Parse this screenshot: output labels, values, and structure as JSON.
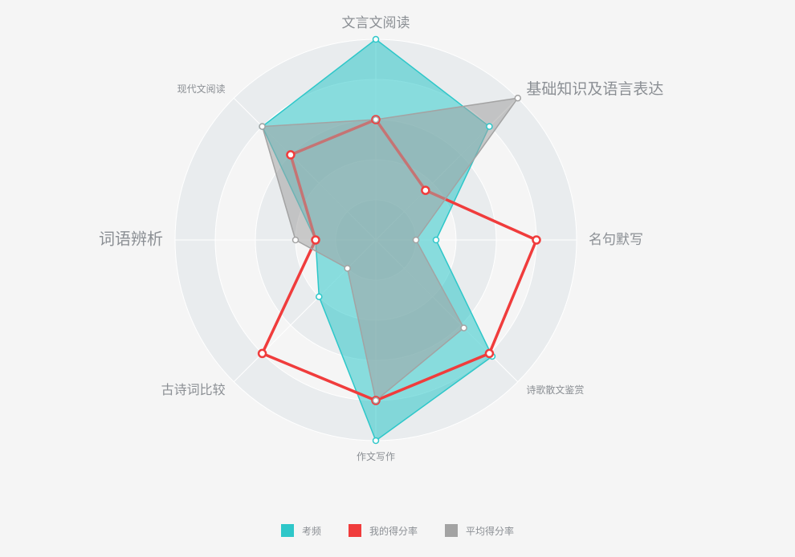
{
  "chart_data": {
    "type": "radar",
    "max": 100,
    "indicators": [
      {
        "name": "文言文阅读"
      },
      {
        "name": "基础知识及语言表达"
      },
      {
        "name": "名句默写"
      },
      {
        "name": "诗歌散文鉴赏"
      },
      {
        "name": "作文写作"
      },
      {
        "name": "古诗词比较"
      },
      {
        "name": "词语辨析"
      },
      {
        "name": "现代文阅读"
      }
    ],
    "series": [
      {
        "name": "考频",
        "color": "#2ec7c9",
        "fill": true,
        "values": [
          100,
          80,
          30,
          82,
          100,
          40,
          30,
          80
        ]
      },
      {
        "name": "我的得分率",
        "color": "#f03c3c",
        "fill": false,
        "values": [
          60,
          35,
          80,
          80,
          80,
          80,
          30,
          60
        ]
      },
      {
        "name": "平均得分率",
        "color": "#a3a3a3",
        "fill": true,
        "values": [
          60,
          100,
          20,
          62,
          80,
          20,
          40,
          80
        ]
      }
    ],
    "legend": "bottom-center",
    "ring_colors": [
      "#e9ecee",
      "#f5f5f5"
    ]
  }
}
